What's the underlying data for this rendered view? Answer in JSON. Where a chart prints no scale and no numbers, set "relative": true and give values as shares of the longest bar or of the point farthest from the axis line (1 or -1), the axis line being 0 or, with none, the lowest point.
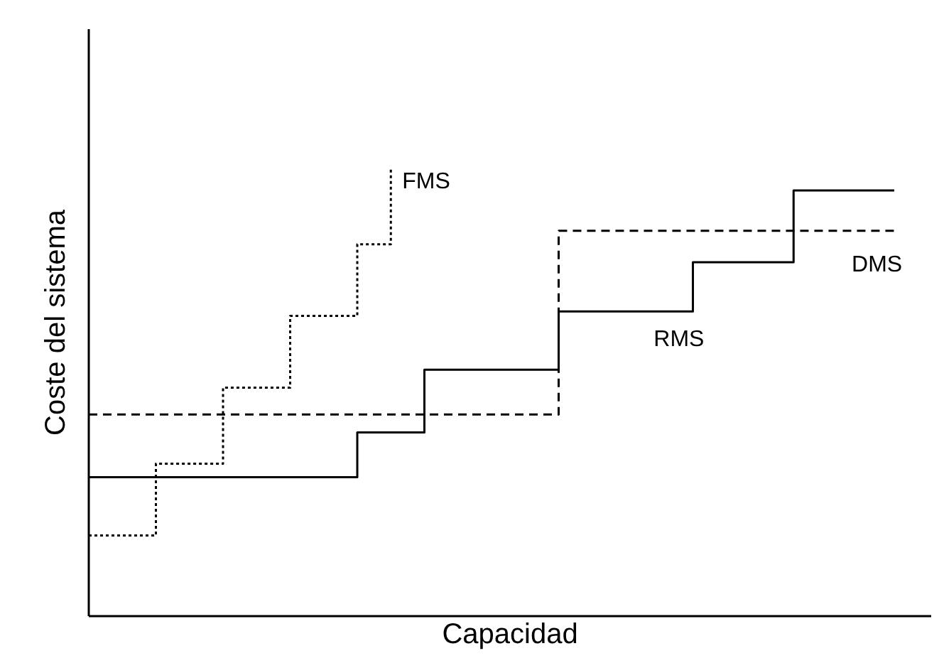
{
  "chart_data": {
    "type": "step",
    "relative": true,
    "xlabel": "Capacidad",
    "ylabel": "Coste del sistema",
    "categories": [
      null,
      null,
      null,
      null,
      null,
      null,
      null,
      null,
      null,
      null,
      null,
      null,
      null,
      null,
      null,
      null,
      null,
      null,
      null,
      null,
      null,
      null,
      null,
      null,
      null
    ],
    "series": [
      {
        "name": "FMS",
        "color": "#000000",
        "line_style": "dotted",
        "values": [
          0.18,
          0.18,
          0.34,
          0.34,
          0.51,
          0.51,
          0.67,
          0.67,
          0.83,
          1,
          null,
          null,
          null,
          null,
          null,
          null,
          null,
          null,
          null,
          null,
          null,
          null,
          null,
          null,
          null
        ]
      },
      {
        "name": "DMS",
        "color": "#000000",
        "line_style": "dashed",
        "values": [
          0.45,
          0.45,
          0.45,
          0.45,
          0.45,
          0.45,
          0.45,
          0.45,
          0.45,
          0.45,
          0.45,
          0.45,
          0.45,
          0.45,
          0.86,
          0.86,
          0.86,
          0.86,
          0.86,
          0.86,
          0.86,
          0.86,
          0.86,
          0.86,
          0.86
        ]
      },
      {
        "name": "RMS",
        "color": "#000000",
        "line_style": "solid",
        "values": [
          0.31,
          0.31,
          0.31,
          0.31,
          0.31,
          0.31,
          0.31,
          0.31,
          0.41,
          0.41,
          0.55,
          0.55,
          0.55,
          0.55,
          0.68,
          0.68,
          0.68,
          0.68,
          0.79,
          0.79,
          0.79,
          0.95,
          0.95,
          0.95,
          0.95
        ]
      }
    ]
  }
}
